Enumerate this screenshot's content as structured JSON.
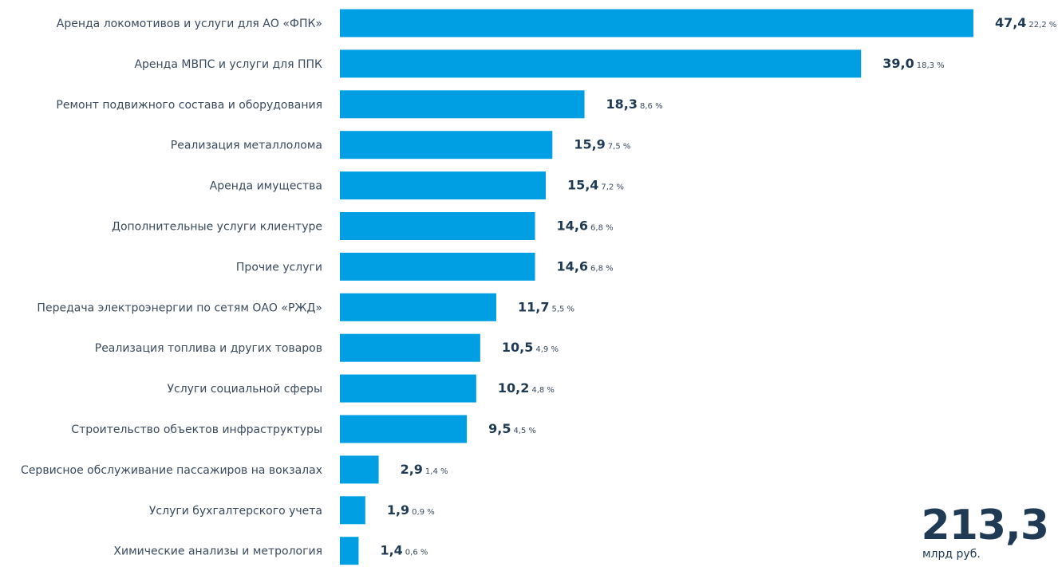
{
  "chart_data": {
    "type": "bar",
    "orientation": "horizontal",
    "categories": [
      "Аренда локомотивов и услуги для АО «ФПК»",
      "Аренда МВПС и услуги для ППК",
      "Ремонт подвижного состава и оборудования",
      "Реализация металлолома",
      "Аренда имущества",
      "Дополнительные услуги клиентуре",
      "Прочие услуги",
      "Передача электроэнергии по сетям ОАО «РЖД»",
      "Реализация топлива и других товаров",
      "Услуги социальной сферы",
      "Строительство объектов инфраструктуры",
      "Сервисное обслуживание пассажиров на вокзалах",
      "Услуги бухгалтерского учета",
      "Химические анализы и метрология"
    ],
    "values": [
      47.4,
      39.0,
      18.3,
      15.9,
      15.4,
      14.6,
      14.6,
      11.7,
      10.5,
      10.2,
      9.5,
      2.9,
      1.9,
      1.4
    ],
    "value_labels": [
      "47,4",
      "39,0",
      "18,3",
      "15,9",
      "15,4",
      "14,6",
      "14,6",
      "11,7",
      "10,5",
      "10,2",
      "9,5",
      "2,9",
      "1,9",
      "1,4"
    ],
    "percent_labels": [
      "22,2 %",
      "18,3 %",
      "8,6 %",
      "7,5 %",
      "7,2 %",
      "6,8 %",
      "6,8 %",
      "5,5 %",
      "4,9 %",
      "4,8 %",
      "4,5 %",
      "1,4 %",
      "0,9 %",
      "0,6 %"
    ],
    "bar_color": "#009fe3",
    "grid": false,
    "legend": "none"
  },
  "total": {
    "value": "213,3",
    "unit": "млрд руб."
  }
}
